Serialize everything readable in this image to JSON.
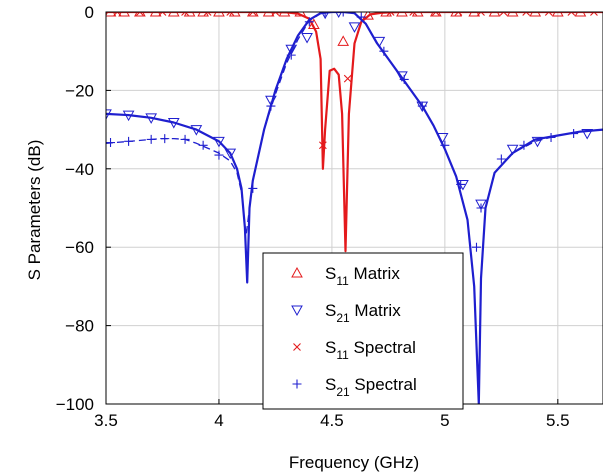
{
  "chart_data": {
    "type": "line",
    "xlabel": "Frequency (GHz)",
    "ylabel": "S Parameters (dB)",
    "xlim": [
      3.5,
      5.7
    ],
    "ylim": [
      -100,
      0
    ],
    "xticks": [
      3.5,
      4,
      4.5,
      5,
      5.5
    ],
    "xtick_labels": [
      "3.5",
      "4",
      "4.5",
      "5",
      "5.5"
    ],
    "yticks": [
      0,
      -20,
      -40,
      -60,
      -80,
      -100
    ],
    "ytick_labels": [
      "0",
      "−20",
      "−40",
      "−60",
      "−80",
      "−100"
    ],
    "grid": true,
    "legend_position": "bottom-center",
    "colors": {
      "s11": "#e41a1c",
      "s21": "#1f1fcf"
    },
    "series": [
      {
        "name": "S11 Matrix",
        "legend_main": "S",
        "legend_sub": "11",
        "legend_rest": " Matrix",
        "marker": "triangle-up",
        "color": "#e41a1c",
        "line": "solid",
        "x": [
          3.5,
          3.6,
          3.7,
          3.8,
          3.9,
          4.0,
          4.1,
          4.2,
          4.3,
          4.35,
          4.4,
          4.43,
          4.45,
          4.46,
          4.47,
          4.49,
          4.51,
          4.53,
          4.545,
          4.56,
          4.575,
          4.6,
          4.63,
          4.67,
          4.72,
          4.8,
          4.9,
          5.0,
          5.1,
          5.2,
          5.3,
          5.4,
          5.5,
          5.6,
          5.7
        ],
        "y": [
          0,
          0,
          0,
          0,
          0,
          0,
          0,
          0,
          -0.1,
          -0.4,
          -1.7,
          -5,
          -12,
          -40,
          -30,
          -15,
          -14.5,
          -16,
          -26,
          -61,
          -26,
          -8,
          -2.5,
          -0.6,
          -0.2,
          0,
          0,
          0,
          0,
          0,
          0,
          0,
          0,
          0,
          0
        ]
      },
      {
        "name": "S21 Matrix",
        "legend_main": "S",
        "legend_sub": "21",
        "legend_rest": " Matrix",
        "marker": "triangle-down",
        "color": "#1f1fcf",
        "line": "solid",
        "x": [
          3.5,
          3.6,
          3.7,
          3.8,
          3.9,
          4.0,
          4.05,
          4.08,
          4.1,
          4.115,
          4.125,
          4.135,
          4.15,
          4.2,
          4.25,
          4.3,
          4.35,
          4.4,
          4.45,
          4.5,
          4.55,
          4.6,
          4.65,
          4.7,
          4.75,
          4.8,
          4.85,
          4.9,
          4.95,
          5.0,
          5.05,
          5.1,
          5.13,
          5.15,
          5.16,
          5.18,
          5.22,
          5.3,
          5.4,
          5.5,
          5.6,
          5.7
        ],
        "y": [
          -26,
          -26.3,
          -27,
          -28.2,
          -30,
          -33,
          -36,
          -40,
          -45,
          -55,
          -69,
          -50,
          -43,
          -30,
          -20,
          -12,
          -6,
          -2,
          -0.3,
          0,
          0,
          -0.3,
          -3,
          -8,
          -12,
          -16,
          -20,
          -24,
          -29,
          -35,
          -42,
          -53,
          -70,
          -100,
          -68,
          -50,
          -41,
          -36,
          -32.5,
          -31.5,
          -30.5,
          -30
        ]
      },
      {
        "name": "S11 Spectral",
        "legend_main": "S",
        "legend_sub": "11",
        "legend_rest": " Spectral",
        "marker": "x",
        "color": "#e41a1c",
        "line": "none",
        "x": [
          3.55,
          3.65,
          3.75,
          3.85,
          3.95,
          4.05,
          4.15,
          4.25,
          4.46,
          4.57,
          4.76,
          4.86,
          4.96,
          5.06,
          5.16,
          5.26,
          5.36,
          5.46,
          5.56,
          5.66
        ],
        "y": [
          0,
          0,
          0,
          0,
          0,
          0,
          0,
          0,
          -34,
          -17,
          0,
          0,
          0,
          0,
          0,
          0,
          0,
          0,
          0,
          0
        ]
      },
      {
        "name": "S21 Spectral",
        "legend_main": "S",
        "legend_sub": "21",
        "legend_rest": " Spectral",
        "marker": "plus",
        "color": "#1f1fcf",
        "line": "dashed",
        "x": [
          3.5,
          3.6,
          3.7,
          3.75,
          3.8,
          3.85,
          3.9,
          4.0,
          4.05,
          4.08,
          4.1,
          4.12,
          4.135,
          4.15,
          4.2,
          4.25,
          4.3,
          4.35,
          4.4,
          4.45,
          4.5,
          4.55,
          4.6,
          4.65,
          4.7,
          4.75,
          4.8,
          4.85,
          4.9,
          4.95,
          5.0,
          5.05,
          5.1,
          5.13,
          5.15,
          5.16,
          5.18,
          5.22,
          5.3,
          5.4,
          5.5,
          5.6,
          5.7
        ],
        "y": [
          -33.5,
          -33,
          -32.5,
          -32.3,
          -32.3,
          -32.5,
          -33.5,
          -36,
          -38,
          -41,
          -46,
          -57,
          -50,
          -43,
          -30,
          -21,
          -13,
          -7,
          -2.2,
          -0.4,
          0,
          0,
          -0.3,
          -3,
          -8,
          -12,
          -16,
          -20,
          -24,
          -29,
          -35,
          -42,
          -53,
          -70,
          -100,
          -68,
          -50,
          -41,
          -36,
          -33,
          -31.5,
          -30.5,
          -30
        ]
      }
    ],
    "marker_points": {
      "s11_matrix": {
        "x": [
          3.52,
          3.58,
          3.65,
          3.72,
          3.8,
          3.87,
          3.93,
          4.0,
          4.07,
          4.15,
          4.22,
          4.29,
          4.36,
          4.42,
          4.55,
          4.66,
          4.74,
          4.81,
          4.88,
          4.96,
          5.05,
          5.13,
          5.22,
          5.3,
          5.4,
          5.5,
          5.6
        ],
        "y": [
          0,
          0,
          0,
          0,
          0,
          0,
          0,
          0,
          0,
          0,
          0,
          0,
          0,
          -3.2,
          -7.5,
          -0.8,
          0,
          0,
          0,
          0,
          0,
          0,
          0,
          0,
          0,
          0,
          0
        ]
      },
      "s21_matrix": {
        "x": [
          3.5,
          3.6,
          3.7,
          3.8,
          3.9,
          4.0,
          4.05,
          4.23,
          4.32,
          4.39,
          4.47,
          4.53,
          4.6,
          4.71,
          4.81,
          4.9,
          4.99,
          5.08,
          5.16,
          5.3,
          5.41,
          5.63
        ],
        "y": [
          -26,
          -26.3,
          -27,
          -28.2,
          -30,
          -33,
          -36,
          -22.5,
          -9.5,
          -6.5,
          -0.3,
          0,
          -3.8,
          -7.5,
          -16.3,
          -24,
          -32,
          -44,
          -49,
          -35,
          -33,
          -31
        ]
      },
      "s11_spectral": {
        "x": [
          3.55,
          3.65,
          3.75,
          3.85,
          3.95,
          4.05,
          4.15,
          4.25,
          4.46,
          4.57,
          4.76,
          4.86,
          4.96,
          5.06,
          5.16,
          5.26,
          5.36,
          5.46,
          5.56,
          5.66
        ],
        "y": [
          0,
          0,
          0,
          0,
          0,
          0,
          0,
          0,
          -34,
          -17,
          0,
          0,
          0,
          0,
          0,
          0,
          0,
          0,
          0,
          0
        ]
      },
      "s21_spectral": {
        "x": [
          3.52,
          3.6,
          3.7,
          3.76,
          3.85,
          3.93,
          4.0,
          4.15,
          4.23,
          4.32,
          4.4,
          4.47,
          4.55,
          4.63,
          4.73,
          4.82,
          4.9,
          5.0,
          5.07,
          5.14,
          5.16,
          5.25,
          5.35,
          5.47,
          5.57
        ],
        "y": [
          -33.3,
          -33,
          -32.5,
          -32.3,
          -32.5,
          -34,
          -36.5,
          -45,
          -24,
          -11,
          -2.5,
          0,
          0,
          -1.3,
          -10,
          -17.2,
          -24,
          -34,
          -44,
          -60,
          -50,
          -37.5,
          -34,
          -32,
          -31
        ]
      }
    }
  }
}
